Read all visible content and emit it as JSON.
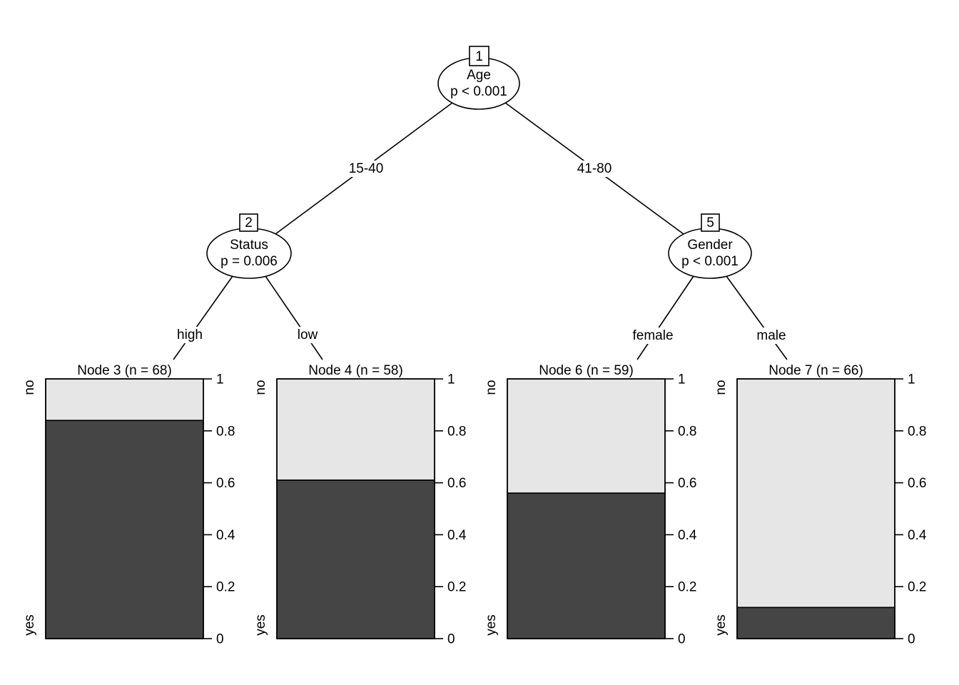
{
  "figure": {
    "kind": "conditional-inference-tree-plot",
    "background": "#ffffff",
    "tree": {
      "nodes": [
        {
          "id": "1",
          "label": "Age",
          "pvalue": "p < 0.001"
        },
        {
          "id": "2",
          "label": "Status",
          "pvalue": "p = 0.006"
        },
        {
          "id": "5",
          "label": "Gender",
          "pvalue": "p < 0.001"
        }
      ],
      "edges": [
        {
          "label": "15-40"
        },
        {
          "label": "41-80"
        },
        {
          "label": "high"
        },
        {
          "label": "low"
        },
        {
          "label": "female"
        },
        {
          "label": "male"
        }
      ]
    }
  },
  "chart_data": {
    "type": "bar",
    "subtype": "stacked-proportion-terminal-nodes",
    "panels": [
      {
        "title": "Node 3 (n = 68)",
        "n": 68,
        "yes": 0.84,
        "no": 0.16
      },
      {
        "title": "Node 4 (n = 58)",
        "n": 58,
        "yes": 0.61,
        "no": 0.39
      },
      {
        "title": "Node 6 (n = 59)",
        "n": 59,
        "yes": 0.56,
        "no": 0.44
      },
      {
        "title": "Node 7 (n = 66)",
        "n": 66,
        "yes": 0.12,
        "no": 0.88
      }
    ],
    "categories_axis": [
      "yes",
      "no"
    ],
    "yticks": [
      0,
      0.2,
      0.4,
      0.6,
      0.8,
      1
    ],
    "ylim": [
      0,
      1
    ],
    "grid": false,
    "legend": "none",
    "colors": {
      "yes_fill": "#454545",
      "no_fill": "#e6e6e6",
      "stroke": "#000000"
    }
  }
}
